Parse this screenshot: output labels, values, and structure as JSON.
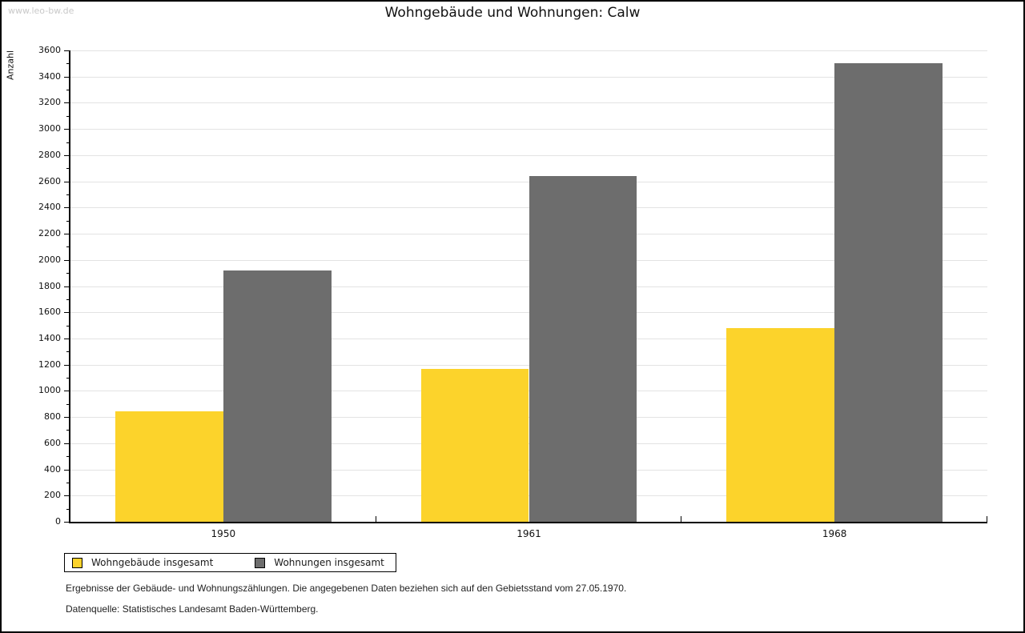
{
  "watermark": "www.leo-bw.de",
  "title": "Wohngebäude und Wohnungen: Calw",
  "chart_data": {
    "type": "bar",
    "title": "Wohngebäude und Wohnungen: Calw",
    "categories": [
      "1950",
      "1961",
      "1968"
    ],
    "series": [
      {
        "name": "Wohngebäude insgesamt",
        "color": "#FCD32B",
        "values": [
          845,
          1170,
          1480
        ]
      },
      {
        "name": "Wohnungen insgesamt",
        "color": "#6D6D6D",
        "values": [
          1920,
          2640,
          3500
        ]
      }
    ],
    "xlabel": "",
    "ylabel": "Anzahl",
    "ylim": [
      0,
      3600
    ],
    "ytick_step": 200,
    "yminor_step": 100,
    "grid": true,
    "legend_position": "bottom-left"
  },
  "footnotes": [
    "Ergebnisse der Gebäude- und Wohnungszählungen. Die angegebenen Daten beziehen sich auf den Gebietsstand vom 27.05.1970.",
    "Datenquelle: Statistisches Landesamt Baden-Württemberg."
  ],
  "colors": {
    "series_1": "#FCD32B",
    "series_2": "#6D6D6D",
    "gridline": "#E3E3E3",
    "axis": "#000000",
    "watermark": "#C9C9C9"
  }
}
